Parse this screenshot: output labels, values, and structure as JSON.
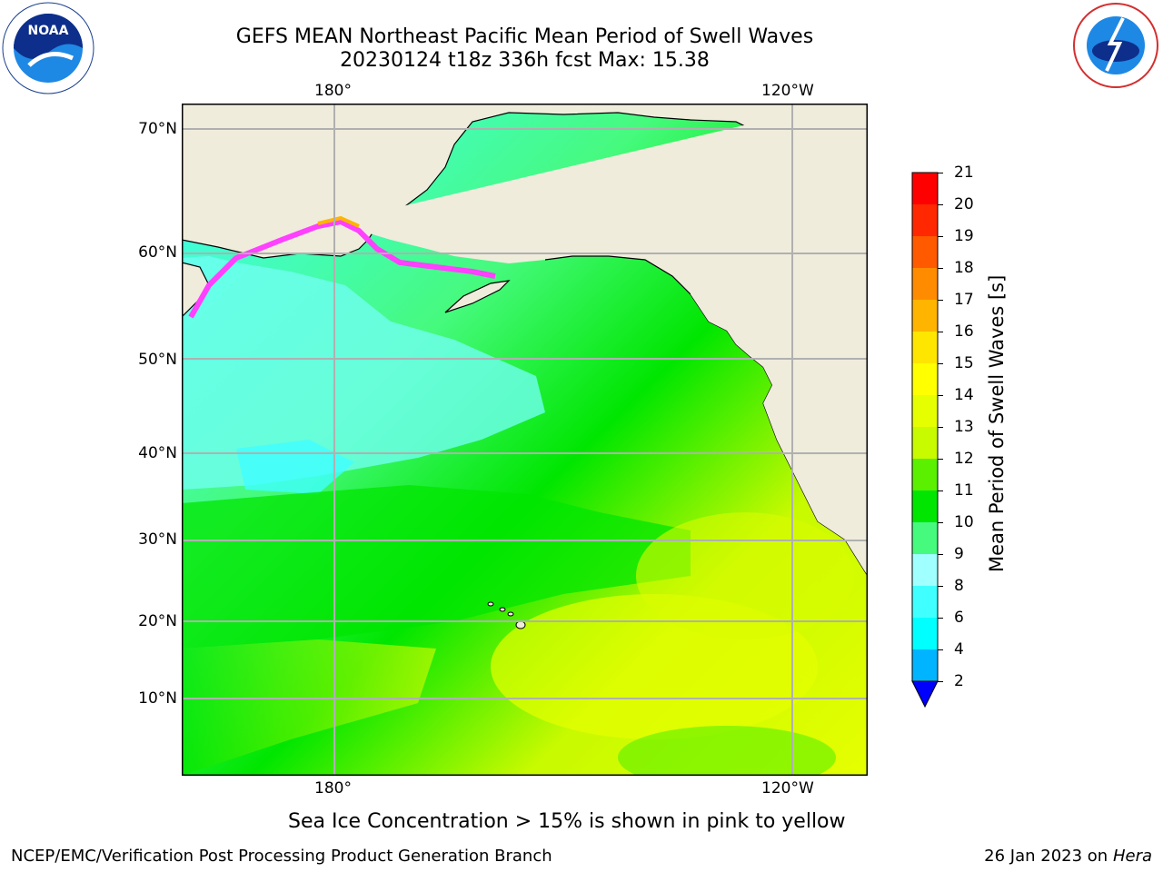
{
  "header": {
    "title_line1": "GEFS MEAN Northeast Pacific Mean Period of Swell Waves",
    "title_line2": "20230124 t18z 336h fcst   Max: 15.38"
  },
  "logos": {
    "left": {
      "name": "NOARA logo",
      "text": "NOAA"
    },
    "right": {
      "name": "National Weather Service logo",
      "text": "NATIONAL WEATHER SERVICE"
    }
  },
  "map": {
    "lon_labels_top": [
      "180°",
      "120°W"
    ],
    "lon_labels_bottom": [
      "180°",
      "120°W"
    ],
    "lat_labels": [
      "70°N",
      "60°N",
      "50°N",
      "40°N",
      "30°N",
      "20°N",
      "10°N"
    ],
    "gridlines": true,
    "colors": {
      "land": "#efecdc",
      "ocean_low": "#40ffff",
      "ocean_mid": "#00e600",
      "ocean_high": "#e6ff00",
      "grid": "#b0b0b0",
      "coast": "#000000",
      "ice": "#ff40ff"
    }
  },
  "colorbar": {
    "title": "Mean Period of Swell Waves [s]",
    "ticks": [
      "2",
      "4",
      "6",
      "8",
      "9",
      "10",
      "11",
      "12",
      "13",
      "14",
      "15",
      "16",
      "17",
      "18",
      "19",
      "20",
      "21"
    ],
    "colors": [
      "#0064ff",
      "#00b4ff",
      "#00ffff",
      "#40ffff",
      "#a0ffff",
      "#46fa7e",
      "#00e600",
      "#5af000",
      "#c8fa00",
      "#e6ff00",
      "#ffff00",
      "#ffe600",
      "#ffb400",
      "#ff8c00",
      "#ff5a00",
      "#ff2800",
      "#ff0000"
    ],
    "extend_min_color": "#0000ff"
  },
  "caption": "Sea Ice Concentration > 15% is shown in pink to yellow",
  "footer": {
    "left": "NCEP/EMC/Verification Post Processing Product Generation Branch",
    "right_date": "26 Jan 2023 on ",
    "right_host": "Hera"
  }
}
